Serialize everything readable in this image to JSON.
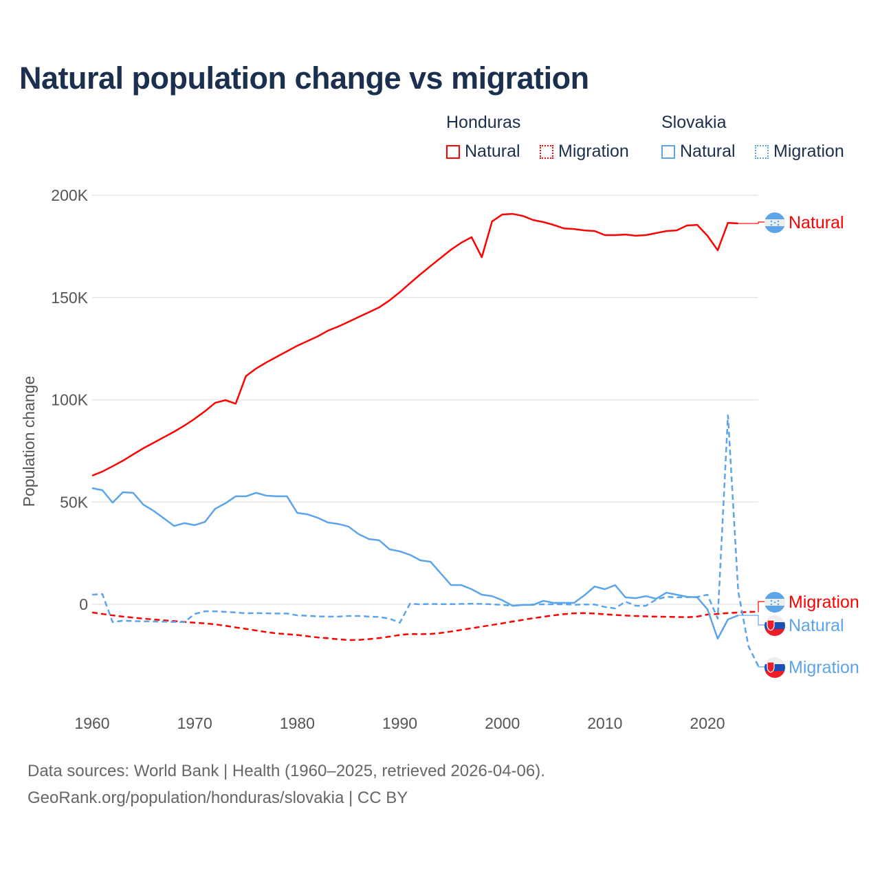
{
  "chart_data": {
    "type": "line",
    "title": "Natural population change vs migration",
    "xlabel": "",
    "ylabel": "Population change",
    "xlim": [
      1960,
      2025
    ],
    "ylim": [
      -40000,
      200000
    ],
    "yticks": [
      0,
      50000,
      100000,
      150000,
      200000
    ],
    "ytick_labels": [
      "0",
      "50K",
      "100K",
      "150K",
      "200K"
    ],
    "xticks": [
      1960,
      1970,
      1980,
      1990,
      2000,
      2010,
      2020
    ],
    "xtick_labels": [
      "1960",
      "1970",
      "1980",
      "1990",
      "2000",
      "2010",
      "2020"
    ],
    "grid": true,
    "legend": {
      "placement": "top-right",
      "groups": [
        {
          "name": "Honduras",
          "items": [
            "Natural",
            "Migration"
          ]
        },
        {
          "name": "Slovakia",
          "items": [
            "Natural",
            "Migration"
          ]
        }
      ]
    },
    "series": [
      {
        "country": "Honduras",
        "name": "Natural",
        "color": "#ff0000",
        "dash": false,
        "end_label": "Natural",
        "start_year": 1960,
        "values": [
          62900,
          64900,
          67500,
          70200,
          73300,
          76300,
          79000,
          81700,
          84400,
          87400,
          90700,
          94400,
          98500,
          99800,
          98100,
          111600,
          115300,
          118300,
          121000,
          123700,
          126400,
          128700,
          131000,
          133800,
          135800,
          138100,
          140500,
          142800,
          145200,
          148600,
          152600,
          157000,
          161300,
          165400,
          169400,
          173400,
          176800,
          179500,
          169700,
          187200,
          190600,
          190900,
          189900,
          187900,
          186900,
          185500,
          183800,
          183500,
          182800,
          182500,
          180500,
          180500,
          180800,
          180200,
          180500,
          181500,
          182500,
          182800,
          185200,
          185500,
          180200,
          173100,
          186500,
          186200
        ]
      },
      {
        "country": "Honduras",
        "name": "Migration",
        "color": "#ff0000",
        "dash": true,
        "end_label": "Migration",
        "start_year": 1960,
        "values": [
          -4000,
          -4700,
          -5400,
          -6000,
          -6500,
          -7000,
          -7400,
          -7800,
          -8200,
          -8600,
          -9000,
          -9300,
          -9800,
          -10500,
          -11300,
          -12000,
          -12800,
          -13600,
          -14200,
          -14600,
          -15000,
          -15600,
          -16200,
          -16600,
          -17100,
          -17500,
          -17400,
          -17000,
          -16500,
          -15800,
          -15000,
          -14500,
          -14600,
          -14500,
          -14000,
          -13300,
          -12500,
          -11700,
          -10900,
          -10100,
          -9300,
          -8400,
          -7600,
          -6800,
          -6100,
          -5400,
          -4800,
          -4400,
          -4300,
          -4500,
          -4900,
          -5200,
          -5500,
          -5700,
          -5900,
          -6000,
          -6100,
          -6200,
          -6300,
          -6000,
          -5000,
          -4700,
          -4300,
          -4000,
          -3700,
          -3600
        ]
      },
      {
        "country": "Slovakia",
        "name": "Natural",
        "color": "#5ba4ea",
        "dash": false,
        "end_label": "Natural",
        "start_year": 1960,
        "values": [
          56800,
          55800,
          49700,
          54800,
          54500,
          48700,
          45700,
          42000,
          38300,
          39700,
          38700,
          40300,
          46700,
          49400,
          52800,
          52800,
          54500,
          53100,
          52800,
          52800,
          44700,
          44000,
          42300,
          40000,
          39300,
          38000,
          34300,
          31900,
          31300,
          26900,
          25900,
          24200,
          21500,
          20800,
          15100,
          9400,
          9400,
          7400,
          4700,
          4000,
          2000,
          -700,
          -300,
          -300,
          1700,
          700,
          700,
          700,
          4400,
          8700,
          7400,
          9400,
          3400,
          3000,
          4000,
          2700,
          5700,
          4700,
          3700,
          3400,
          -2400,
          -16800,
          -7400,
          -5400
        ]
      },
      {
        "country": "Slovakia",
        "name": "Migration",
        "color": "#5ba4ea",
        "dash": true,
        "end_label": "Migration",
        "start_year": 1960,
        "values": [
          4700,
          5000,
          -8700,
          -8000,
          -8200,
          -8300,
          -8400,
          -8500,
          -8600,
          -8700,
          -4700,
          -3400,
          -3400,
          -3700,
          -4000,
          -4400,
          -4300,
          -4400,
          -4500,
          -4500,
          -5400,
          -5600,
          -5900,
          -6000,
          -6000,
          -5700,
          -5700,
          -6000,
          -6200,
          -7000,
          -9000,
          300,
          0,
          200,
          100,
          100,
          200,
          300,
          200,
          0,
          -300,
          -700,
          -300,
          -100,
          0,
          0,
          0,
          -200,
          -100,
          -100,
          -1300,
          -2000,
          1300,
          -700,
          -700,
          2300,
          3700,
          3400,
          3500,
          3600,
          4700,
          -7000,
          92400,
          6400,
          -20500,
          -30600
        ]
      }
    ]
  },
  "footer": {
    "line1": "Data sources: World Bank | Health (1960–2025, retrieved 2026-04-06).",
    "line2": "GeoRank.org/population/honduras/slovakia | CC BY"
  }
}
